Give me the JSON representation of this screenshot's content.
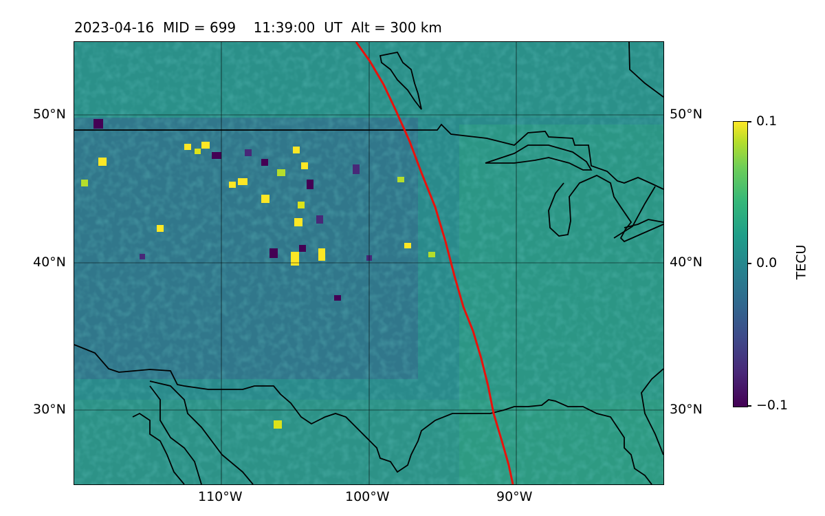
{
  "title": "2023-04-16  MID = 699    11:39:00  UT  Alt = 300 km",
  "lon_labels": [
    "110°W",
    "100°W",
    "90°W"
  ],
  "lat_labels": [
    "50°N",
    "40°N",
    "30°N"
  ],
  "colorbar": {
    "label": "TECU",
    "max_label": "0.1",
    "mid_label": "0.0",
    "min_label": "−0.1",
    "colormap": "viridis"
  },
  "colors": {
    "background_field": "#21918c",
    "track_line": "#e8120c",
    "coastline": "#000000"
  }
}
